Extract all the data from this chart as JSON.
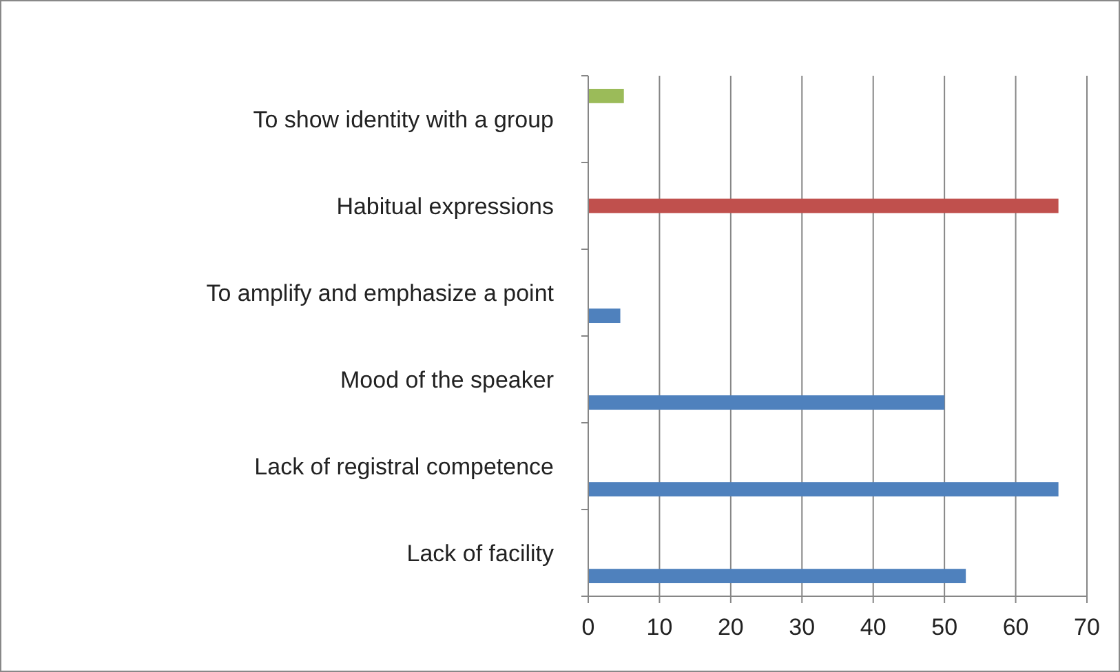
{
  "chart_data": {
    "type": "bar",
    "orientation": "horizontal",
    "categories": [
      "To show identity with a group",
      "Habitual expressions",
      "To amplify and emphasize a point",
      "Mood of the speaker",
      "Lack of registral competence",
      "Lack of facility"
    ],
    "series": [
      {
        "color": "#4f81bd",
        "values": [
          null,
          null,
          4.5,
          50,
          66,
          53
        ]
      },
      {
        "color": "#c0504d",
        "values": [
          null,
          66,
          null,
          null,
          null,
          null
        ]
      },
      {
        "color": "#9bbb59",
        "values": [
          5,
          null,
          null,
          null,
          null,
          null
        ]
      }
    ],
    "xlim": [
      0,
      70
    ],
    "xticks": [
      0,
      10,
      20,
      30,
      40,
      50,
      60,
      70
    ],
    "grid": "x"
  }
}
